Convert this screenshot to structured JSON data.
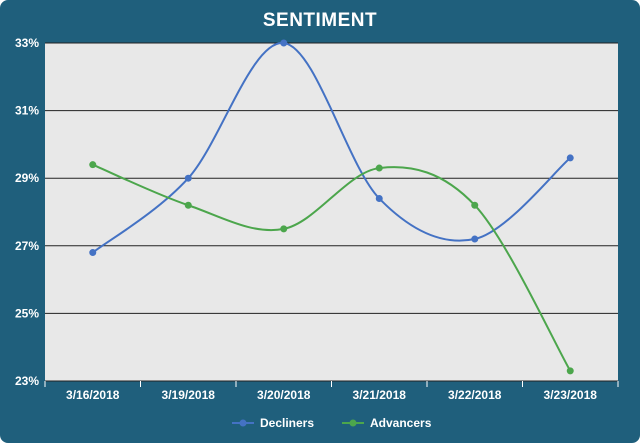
{
  "chart_data": {
    "type": "line",
    "title": "SENTIMENT",
    "categories": [
      "3/16/2018",
      "3/19/2018",
      "3/20/2018",
      "3/21/2018",
      "3/22/2018",
      "3/23/2018"
    ],
    "y_ticks": [
      "23%",
      "25%",
      "27%",
      "29%",
      "31%",
      "33%"
    ],
    "ylim": [
      23,
      33
    ],
    "series": [
      {
        "name": "Decliners",
        "values": [
          26.8,
          29.0,
          33.0,
          28.4,
          27.2,
          29.6
        ],
        "color": "#4472c4"
      },
      {
        "name": "Advancers",
        "values": [
          29.4,
          28.2,
          27.5,
          29.3,
          28.2,
          23.3
        ],
        "color": "#4ca64c"
      }
    ],
    "grid": true,
    "legend_position": "bottom",
    "background": "#e8e8e8",
    "frame_color": "#1f5f7c"
  }
}
